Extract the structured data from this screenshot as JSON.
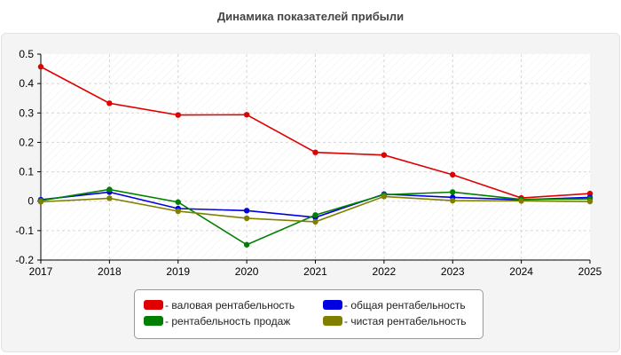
{
  "chart_data": {
    "type": "line",
    "title": "Динамика показателей прибыли",
    "xlabel": "",
    "ylabel": "",
    "x": [
      "2017",
      "2018",
      "2019",
      "2020",
      "2021",
      "2022",
      "2023",
      "2024",
      "2025"
    ],
    "ylim": [
      -0.2,
      0.5
    ],
    "yticks": [
      "0.5",
      "0.4",
      "0.3",
      "0.2",
      "0.1",
      "0",
      "-0.1",
      "-0.2"
    ],
    "grid": true,
    "legend_position": "bottom-center",
    "series": [
      {
        "name": "валовая рентабельность",
        "color": "#e00000",
        "values": [
          0.457,
          0.333,
          0.293,
          0.294,
          0.166,
          0.157,
          0.09,
          0.011,
          0.026
        ]
      },
      {
        "name": "общая рентабельность",
        "color": "#0000e0",
        "values": [
          0.005,
          0.031,
          -0.025,
          -0.032,
          -0.055,
          0.024,
          0.013,
          0.005,
          0.013
        ]
      },
      {
        "name": "рентабельность продаж",
        "color": "#008000",
        "values": [
          0.002,
          0.04,
          -0.003,
          -0.148,
          -0.047,
          0.022,
          0.031,
          0.006,
          0.008
        ]
      },
      {
        "name": "чистая рентабельность",
        "color": "#808000",
        "values": [
          -0.002,
          0.01,
          -0.034,
          -0.058,
          -0.07,
          0.016,
          0.002,
          0.001,
          -0.001
        ]
      }
    ]
  }
}
